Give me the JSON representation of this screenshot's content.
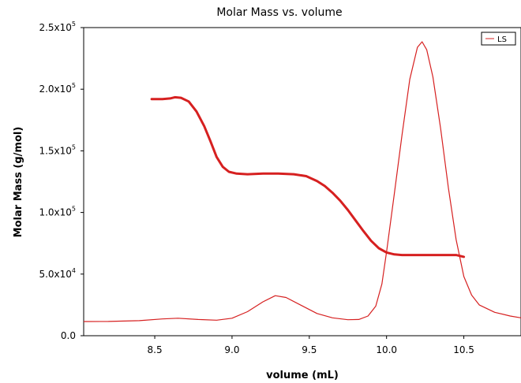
{
  "chart_data": {
    "type": "line",
    "title": "Molar Mass vs. volume",
    "xlabel": "volume (mL)",
    "ylabel": "Molar Mass (g/mol)",
    "xlim": [
      8.04,
      10.87
    ],
    "ylim": [
      0,
      250000
    ],
    "grid": false,
    "legend_position": "top-right",
    "x_ticks": [
      {
        "value": 8.5,
        "label": "8.5"
      },
      {
        "value": 9.0,
        "label": "9.0"
      },
      {
        "value": 9.5,
        "label": "9.5"
      },
      {
        "value": 10.0,
        "label": "10.0"
      },
      {
        "value": 10.5,
        "label": "10.5"
      }
    ],
    "y_ticks": [
      {
        "value": 0,
        "mantissa": "0.0",
        "exponent": ""
      },
      {
        "value": 50000,
        "mantissa": "5.0x10",
        "exponent": "4"
      },
      {
        "value": 100000,
        "mantissa": "1.0x10",
        "exponent": "5"
      },
      {
        "value": 150000,
        "mantissa": "1.5x10",
        "exponent": "5"
      },
      {
        "value": 200000,
        "mantissa": "2.0x10",
        "exponent": "5"
      },
      {
        "value": 250000,
        "mantissa": "2.5x10",
        "exponent": "5"
      }
    ],
    "series": [
      {
        "name": "LS",
        "color": "#d62020",
        "style": "thin-line",
        "x": [
          8.04,
          8.2,
          8.4,
          8.55,
          8.65,
          8.78,
          8.9,
          9.0,
          9.1,
          9.2,
          9.28,
          9.35,
          9.45,
          9.55,
          9.65,
          9.75,
          9.82,
          9.88,
          9.93,
          9.97,
          10.0,
          10.05,
          10.1,
          10.15,
          10.2,
          10.23,
          10.26,
          10.3,
          10.35,
          10.4,
          10.45,
          10.5,
          10.55,
          10.6,
          10.7,
          10.8,
          10.87
        ],
        "y": [
          11500,
          11600,
          12200,
          13600,
          14200,
          13200,
          12600,
          14200,
          19500,
          27500,
          32500,
          31000,
          24500,
          18000,
          14500,
          13000,
          13200,
          16000,
          24000,
          42000,
          68000,
          115000,
          163000,
          208000,
          234000,
          238500,
          232000,
          210000,
          168000,
          120000,
          78000,
          48000,
          33000,
          25000,
          19000,
          16000,
          14500
        ]
      },
      {
        "name": "",
        "color": "#d62020",
        "style": "dotted-thick",
        "x": [
          8.48,
          8.55,
          8.6,
          8.63,
          8.67,
          8.72,
          8.77,
          8.82,
          8.86,
          8.9,
          8.94,
          8.98,
          9.03,
          9.1,
          9.2,
          9.3,
          9.4,
          9.48,
          9.55,
          9.6,
          9.65,
          9.7,
          9.75,
          9.8,
          9.85,
          9.9,
          9.95,
          10.0,
          10.05,
          10.1,
          10.2,
          10.3,
          10.4,
          10.45,
          10.5
        ],
        "y": [
          192000,
          192000,
          192500,
          193500,
          193000,
          190000,
          182000,
          170000,
          158000,
          145000,
          137000,
          133000,
          131500,
          131000,
          131500,
          131500,
          131000,
          129500,
          125500,
          121500,
          116000,
          109500,
          102000,
          93500,
          85000,
          77000,
          71000,
          67500,
          66000,
          65500,
          65500,
          65500,
          65500,
          65500,
          64000
        ]
      }
    ]
  }
}
